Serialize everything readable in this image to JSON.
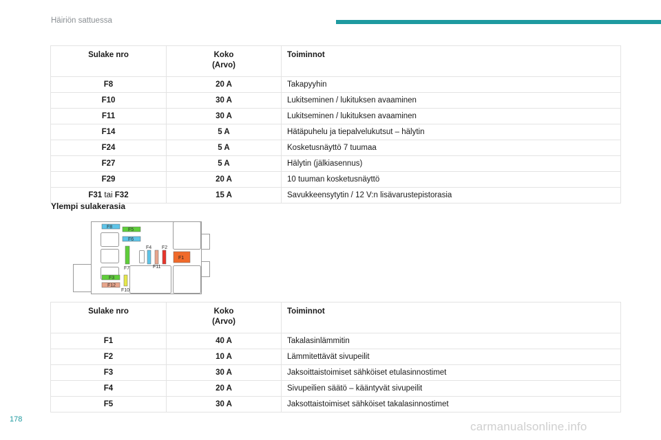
{
  "header": {
    "title": "Häiriön sattuessa"
  },
  "page_number": "178",
  "watermark": "carmanualsonline.info",
  "table1": {
    "headers": {
      "col1": "Sulake nro",
      "col2a": "Koko",
      "col2b": "(Arvo)",
      "col3": "Toiminnot"
    },
    "rows": [
      {
        "fuse": "F8",
        "amp": "20 A",
        "func": "Takapyyhin"
      },
      {
        "fuse": "F10",
        "amp": "30 A",
        "func": "Lukitseminen / lukituksen avaaminen"
      },
      {
        "fuse": "F11",
        "amp": "30 A",
        "func": "Lukitseminen / lukituksen avaaminen"
      },
      {
        "fuse": "F14",
        "amp": "5 A",
        "func": "Hätäpuhelu ja tiepalvelukutsut – hälytin"
      },
      {
        "fuse": "F24",
        "amp": "5 A",
        "func": "Kosketusnäyttö 7 tuumaa"
      },
      {
        "fuse": "F27",
        "amp": "5 A",
        "func": "Hälytin (jälkiasennus)"
      },
      {
        "fuse": "F29",
        "amp": "20 A",
        "func": "10 tuuman kosketusnäyttö"
      }
    ],
    "last_row": {
      "fuse_a": "F31",
      "sep": "tai",
      "fuse_b": "F32",
      "amp": "15 A",
      "func": "Savukkeensytytin / 12 V:n lisävarustepistorasia"
    }
  },
  "section_heading": "Ylempi sulakerasia",
  "diagram": {
    "labels": {
      "f1": "F1",
      "f2": "F2",
      "f3": "F3",
      "f4": "F4",
      "f5": "F5",
      "f6": "F6",
      "f7": "F7",
      "f8": "F8",
      "f10": "F10",
      "f11": "F11",
      "f12": "F12"
    },
    "colors": {
      "blue": "#5ec4e8",
      "green": "#5fce3a",
      "yellow": "#e6e84a",
      "salmon": "#e8a58c",
      "red": "#e8342a",
      "orange": "#f06a2a"
    }
  },
  "table2": {
    "headers": {
      "col1": "Sulake nro",
      "col2a": "Koko",
      "col2b": "(Arvo)",
      "col3": "Toiminnot"
    },
    "rows": [
      {
        "fuse": "F1",
        "amp": "40 A",
        "func": "Takalasinlämmitin"
      },
      {
        "fuse": "F2",
        "amp": "10 A",
        "func": "Lämmitettävät sivupeilit"
      },
      {
        "fuse": "F3",
        "amp": "30 A",
        "func": "Jaksoittaistoimiset sähköiset etulasinnostimet"
      },
      {
        "fuse": "F4",
        "amp": "20 A",
        "func": "Sivupeilien säätö – kääntyvät sivupeilit"
      },
      {
        "fuse": "F5",
        "amp": "30 A",
        "func": "Jaksottaistoimiset sähköiset takalasinnostimet"
      }
    ]
  }
}
